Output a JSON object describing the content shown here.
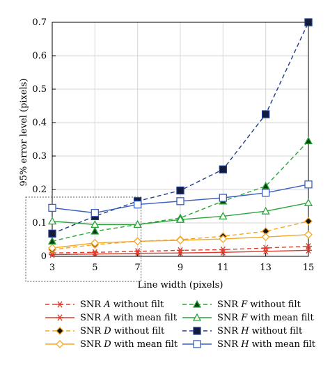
{
  "chart_data": {
    "type": "line",
    "xlabel": "Line width (pixels)",
    "ylabel": "95% error level (pixels)",
    "xlim": [
      3,
      15
    ],
    "ylim": [
      0,
      0.7
    ],
    "x_ticks": [
      3,
      5,
      7,
      9,
      11,
      13,
      15
    ],
    "y_ticks": [
      0,
      0.1,
      0.2,
      0.3,
      0.4,
      0.5,
      0.6,
      0.7
    ],
    "y_tick_labels": [
      "0",
      "0.1",
      "0.2",
      "0.3",
      "0.4",
      "0.5",
      "0.6",
      "0.7"
    ],
    "grid": true,
    "legend_position": "bottom",
    "x": [
      3,
      5,
      7,
      9,
      11,
      13,
      15
    ],
    "series": [
      {
        "prefix": "SNR ",
        "letter": "A",
        "suffix": " without filt",
        "color": "#e03a2a",
        "dashed": true,
        "marker": "star6",
        "values": [
          0.01,
          0.012,
          0.015,
          0.018,
          0.02,
          0.025,
          0.03
        ]
      },
      {
        "prefix": "SNR ",
        "letter": "A",
        "suffix": " with mean filt",
        "color": "#e03a2a",
        "dashed": false,
        "marker": "star6",
        "values": [
          0.005,
          0.007,
          0.009,
          0.01,
          0.012,
          0.015,
          0.018
        ]
      },
      {
        "prefix": "SNR ",
        "letter": "D",
        "suffix": " without filt",
        "color": "#f5a623",
        "dashed": true,
        "marker": "diamond-filled",
        "values": [
          0.02,
          0.035,
          0.045,
          0.05,
          0.06,
          0.075,
          0.105
        ]
      },
      {
        "prefix": "SNR ",
        "letter": "D",
        "suffix": " with mean filt",
        "color": "#f5a623",
        "dashed": false,
        "marker": "diamond-open",
        "values": [
          0.025,
          0.04,
          0.045,
          0.048,
          0.052,
          0.058,
          0.065
        ]
      },
      {
        "prefix": "SNR ",
        "letter": "F",
        "suffix": " without filt",
        "color": "#2aa43a",
        "dashed": true,
        "marker": "triangle-filled",
        "values": [
          0.045,
          0.075,
          0.095,
          0.115,
          0.165,
          0.21,
          0.345
        ]
      },
      {
        "prefix": "SNR ",
        "letter": "F",
        "suffix": " with mean filt",
        "color": "#2aa43a",
        "dashed": false,
        "marker": "triangle-open",
        "values": [
          0.105,
          0.095,
          0.095,
          0.11,
          0.12,
          0.135,
          0.16
        ]
      },
      {
        "prefix": "SNR ",
        "letter": "H",
        "suffix": " without filt",
        "color": "#1f3a8a",
        "dashed": true,
        "marker": "square-filled",
        "values": [
          0.068,
          0.12,
          0.165,
          0.197,
          0.26,
          0.425,
          0.7
        ]
      },
      {
        "prefix": "SNR ",
        "letter": "H",
        "suffix": " with mean filt",
        "color": "#3b5fc0",
        "dashed": false,
        "marker": "square-open",
        "values": [
          0.145,
          0.13,
          0.155,
          0.165,
          0.175,
          0.19,
          0.215
        ]
      }
    ]
  }
}
